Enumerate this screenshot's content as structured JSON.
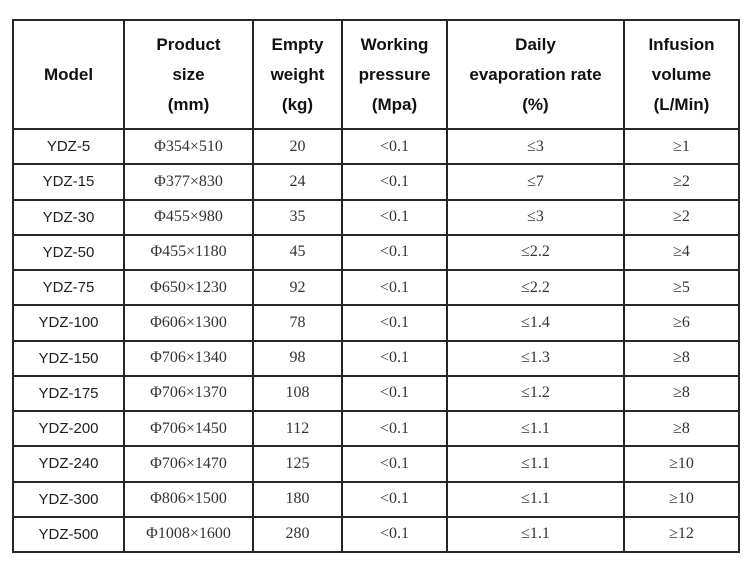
{
  "page": {
    "background_color": "#ffffff",
    "table_border_color": "#262626",
    "text_color": "#1f1f1f"
  },
  "table": {
    "header": {
      "cells": [
        {
          "name": "model",
          "lines": [
            "Model"
          ]
        },
        {
          "name": "product-size",
          "lines": [
            "Product",
            "size",
            "(mm)"
          ]
        },
        {
          "name": "empty-weight",
          "lines": [
            "Empty",
            "weight",
            "(kg)"
          ]
        },
        {
          "name": "working-pressure",
          "lines": [
            "Working",
            "pressure",
            "(Mpa)"
          ]
        },
        {
          "name": "daily-evaporation-rate",
          "lines": [
            "Daily",
            "evaporation rate",
            "(%)"
          ]
        },
        {
          "name": "infusion-volume",
          "lines": [
            "Infusion",
            "volume",
            "(L/Min)"
          ]
        }
      ]
    },
    "rows": [
      [
        "YDZ-5",
        "Φ354×510",
        "20",
        "<0.1",
        "≤3",
        "≥1"
      ],
      [
        "YDZ-15",
        "Φ377×830",
        "24",
        "<0.1",
        "≤7",
        "≥2"
      ],
      [
        "YDZ-30",
        "Φ455×980",
        "35",
        "<0.1",
        "≤3",
        "≥2"
      ],
      [
        "YDZ-50",
        "Φ455×1180",
        "45",
        "<0.1",
        "≤2.2",
        "≥4"
      ],
      [
        "YDZ-75",
        "Φ650×1230",
        "92",
        "<0.1",
        "≤2.2",
        "≥5"
      ],
      [
        "YDZ-100",
        "Φ606×1300",
        "78",
        "<0.1",
        "≤1.4",
        "≥6"
      ],
      [
        "YDZ-150",
        "Φ706×1340",
        "98",
        "<0.1",
        "≤1.3",
        "≥8"
      ],
      [
        "YDZ-175",
        "Φ706×1370",
        "108",
        "<0.1",
        "≤1.2",
        "≥8"
      ],
      [
        "YDZ-200",
        "Φ706×1450",
        "112",
        "<0.1",
        "≤1.1",
        "≥8"
      ],
      [
        "YDZ-240",
        "Φ706×1470",
        "125",
        "<0.1",
        "≤1.1",
        "≥10"
      ],
      [
        "YDZ-300",
        "Φ806×1500",
        "180",
        "<0.1",
        "≤1.1",
        "≥10"
      ],
      [
        "YDZ-500",
        "Φ1008×1600",
        "280",
        "<0.1",
        "≤1.1",
        "≥12"
      ]
    ]
  }
}
